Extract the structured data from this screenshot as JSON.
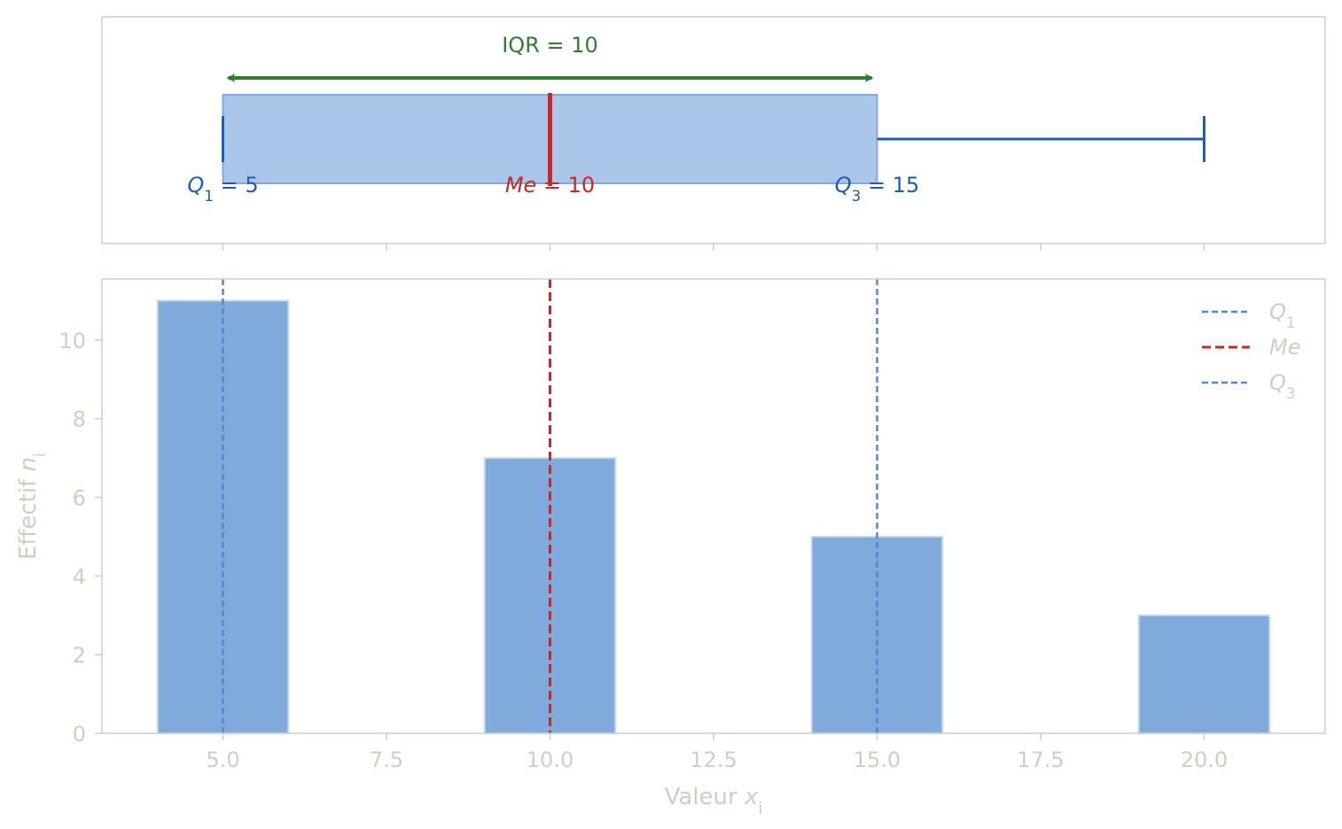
{
  "colors": {
    "spine": "#d2cdc2",
    "tick_text": "#d2cdc2",
    "bar_fill": "#80aadc",
    "bar_edge": "#c8d8ee",
    "box_fill": "#abc6e8",
    "box_edge": "#80aadc",
    "q_line": "#5588d2",
    "q_text": "#1a5fb4",
    "median": "#c62828",
    "iqr": "#2e7d32",
    "whisker": "#1a5fb4"
  },
  "chart_data": [
    {
      "type": "box",
      "q1": 5,
      "median": 10,
      "q3": 15,
      "whisker_low": 5,
      "whisker_high": 20,
      "iqr": 10,
      "annotations": {
        "iqr_label": "IQR = 10",
        "q1_label": {
          "symbol": "Q",
          "sub": "1",
          "rest": " = 5"
        },
        "me_label": {
          "symbol": "Me",
          "rest": " = 10"
        },
        "q3_label": {
          "symbol": "Q",
          "sub": "3",
          "rest": " = 15"
        }
      },
      "xlim": [
        3.15,
        21.85
      ]
    },
    {
      "type": "bar",
      "x": [
        5,
        10,
        15,
        20
      ],
      "values": [
        11,
        7,
        5,
        3
      ],
      "bar_width": 2,
      "xlim": [
        3.15,
        21.85
      ],
      "ylim": [
        0,
        11.55
      ],
      "xticks": [
        5.0,
        7.5,
        10.0,
        12.5,
        15.0,
        17.5,
        20.0
      ],
      "xtick_labels": [
        "5.0",
        "7.5",
        "10.0",
        "12.5",
        "15.0",
        "17.5",
        "20.0"
      ],
      "yticks": [
        0,
        2,
        4,
        6,
        8,
        10
      ],
      "ytick_labels": [
        "0",
        "2",
        "4",
        "6",
        "8",
        "10"
      ],
      "xlabel": {
        "text": "Valeur ",
        "symbol": "x",
        "sub": "i"
      },
      "ylabel": {
        "text": "Effectif ",
        "symbol": "n",
        "sub": "i"
      },
      "vlines": [
        {
          "x": 5,
          "role": "Q1"
        },
        {
          "x": 10,
          "role": "Me"
        },
        {
          "x": 15,
          "role": "Q3"
        }
      ],
      "legend": {
        "position": "top-right",
        "entries": [
          {
            "symbol": "Q",
            "sub": "1"
          },
          {
            "symbol": "Me",
            "sub": ""
          },
          {
            "symbol": "Q",
            "sub": "3"
          }
        ]
      }
    }
  ]
}
